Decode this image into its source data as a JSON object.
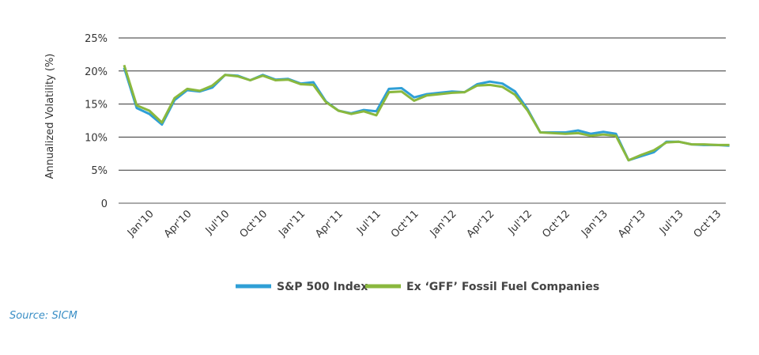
{
  "chart_data": {
    "type": "line",
    "ylabel": "Annualized Volatility (%)",
    "xlabel": "",
    "ylim": [
      0,
      25
    ],
    "yticks": [
      "0",
      "5%",
      "10%",
      "15%",
      "20%",
      "25%"
    ],
    "ytick_values": [
      0,
      5,
      10,
      15,
      20,
      25
    ],
    "x_tick_labels": [
      "Jan'10",
      "Apr'10",
      "Jul'10",
      "Oct'10",
      "Jan'11",
      "Apr'11",
      "Jul'11",
      "Oct'11",
      "Jan'12",
      "Apr'12",
      "Jul'12",
      "Oct'12",
      "Jan'13",
      "Apr'13",
      "Jul'13",
      "Oct'13"
    ],
    "x": [
      "Nov'09",
      "Dec'09",
      "Jan'10",
      "Feb'10",
      "Mar'10",
      "Apr'10",
      "May'10",
      "Jun'10",
      "Jul'10",
      "Aug'10",
      "Sep'10",
      "Oct'10",
      "Nov'10",
      "Dec'10",
      "Jan'11",
      "Feb'11",
      "Mar'11",
      "Apr'11",
      "May'11",
      "Jun'11",
      "Jul'11",
      "Aug'11",
      "Sep'11",
      "Oct'11",
      "Nov'11",
      "Dec'11",
      "Jan'12",
      "Feb'12",
      "Mar'12",
      "Apr'12",
      "May'12",
      "Jun'12",
      "Jul'12",
      "Aug'12",
      "Sep'12",
      "Oct'12",
      "Nov'12",
      "Dec'12",
      "Jan'13",
      "Feb'13",
      "Mar'13",
      "Apr'13",
      "May'13",
      "Jun'13",
      "Jul'13",
      "Aug'13",
      "Sep'13",
      "Oct'13",
      "Nov'13"
    ],
    "series": [
      {
        "name": "S&P 500 Index",
        "color": "#2f9fd6",
        "values": [
          20.5,
          14.4,
          13.5,
          11.9,
          15.6,
          17.1,
          16.9,
          17.5,
          19.4,
          19.3,
          18.6,
          19.4,
          18.7,
          18.8,
          18.1,
          18.3,
          15.4,
          14.0,
          13.6,
          14.1,
          13.9,
          17.3,
          17.4,
          16.0,
          16.5,
          16.7,
          16.9,
          16.8,
          18.0,
          18.4,
          18.1,
          16.9,
          14.2,
          10.7,
          10.7,
          10.7,
          11.0,
          10.5,
          10.8,
          10.5,
          6.5,
          7.1,
          7.7,
          9.3,
          9.3,
          8.9,
          8.8,
          8.8,
          8.7
        ]
      },
      {
        "name": "Ex ‘GFF’ Fossil Fuel  Companies",
        "color": "#8ab83e",
        "values": [
          20.9,
          14.8,
          14.0,
          12.2,
          15.9,
          17.3,
          17.0,
          17.8,
          19.4,
          19.2,
          18.6,
          19.3,
          18.6,
          18.7,
          18.0,
          17.9,
          15.3,
          14.0,
          13.5,
          13.9,
          13.3,
          16.8,
          16.9,
          15.5,
          16.3,
          16.5,
          16.7,
          16.8,
          17.8,
          17.9,
          17.6,
          16.4,
          14.0,
          10.7,
          10.6,
          10.5,
          10.6,
          10.2,
          10.4,
          10.2,
          6.5,
          7.3,
          8.0,
          9.2,
          9.3,
          8.9,
          8.9,
          8.8,
          8.8
        ]
      }
    ],
    "grid": "horizontal",
    "legend": "bottom-center"
  },
  "source": "Source: SICM"
}
